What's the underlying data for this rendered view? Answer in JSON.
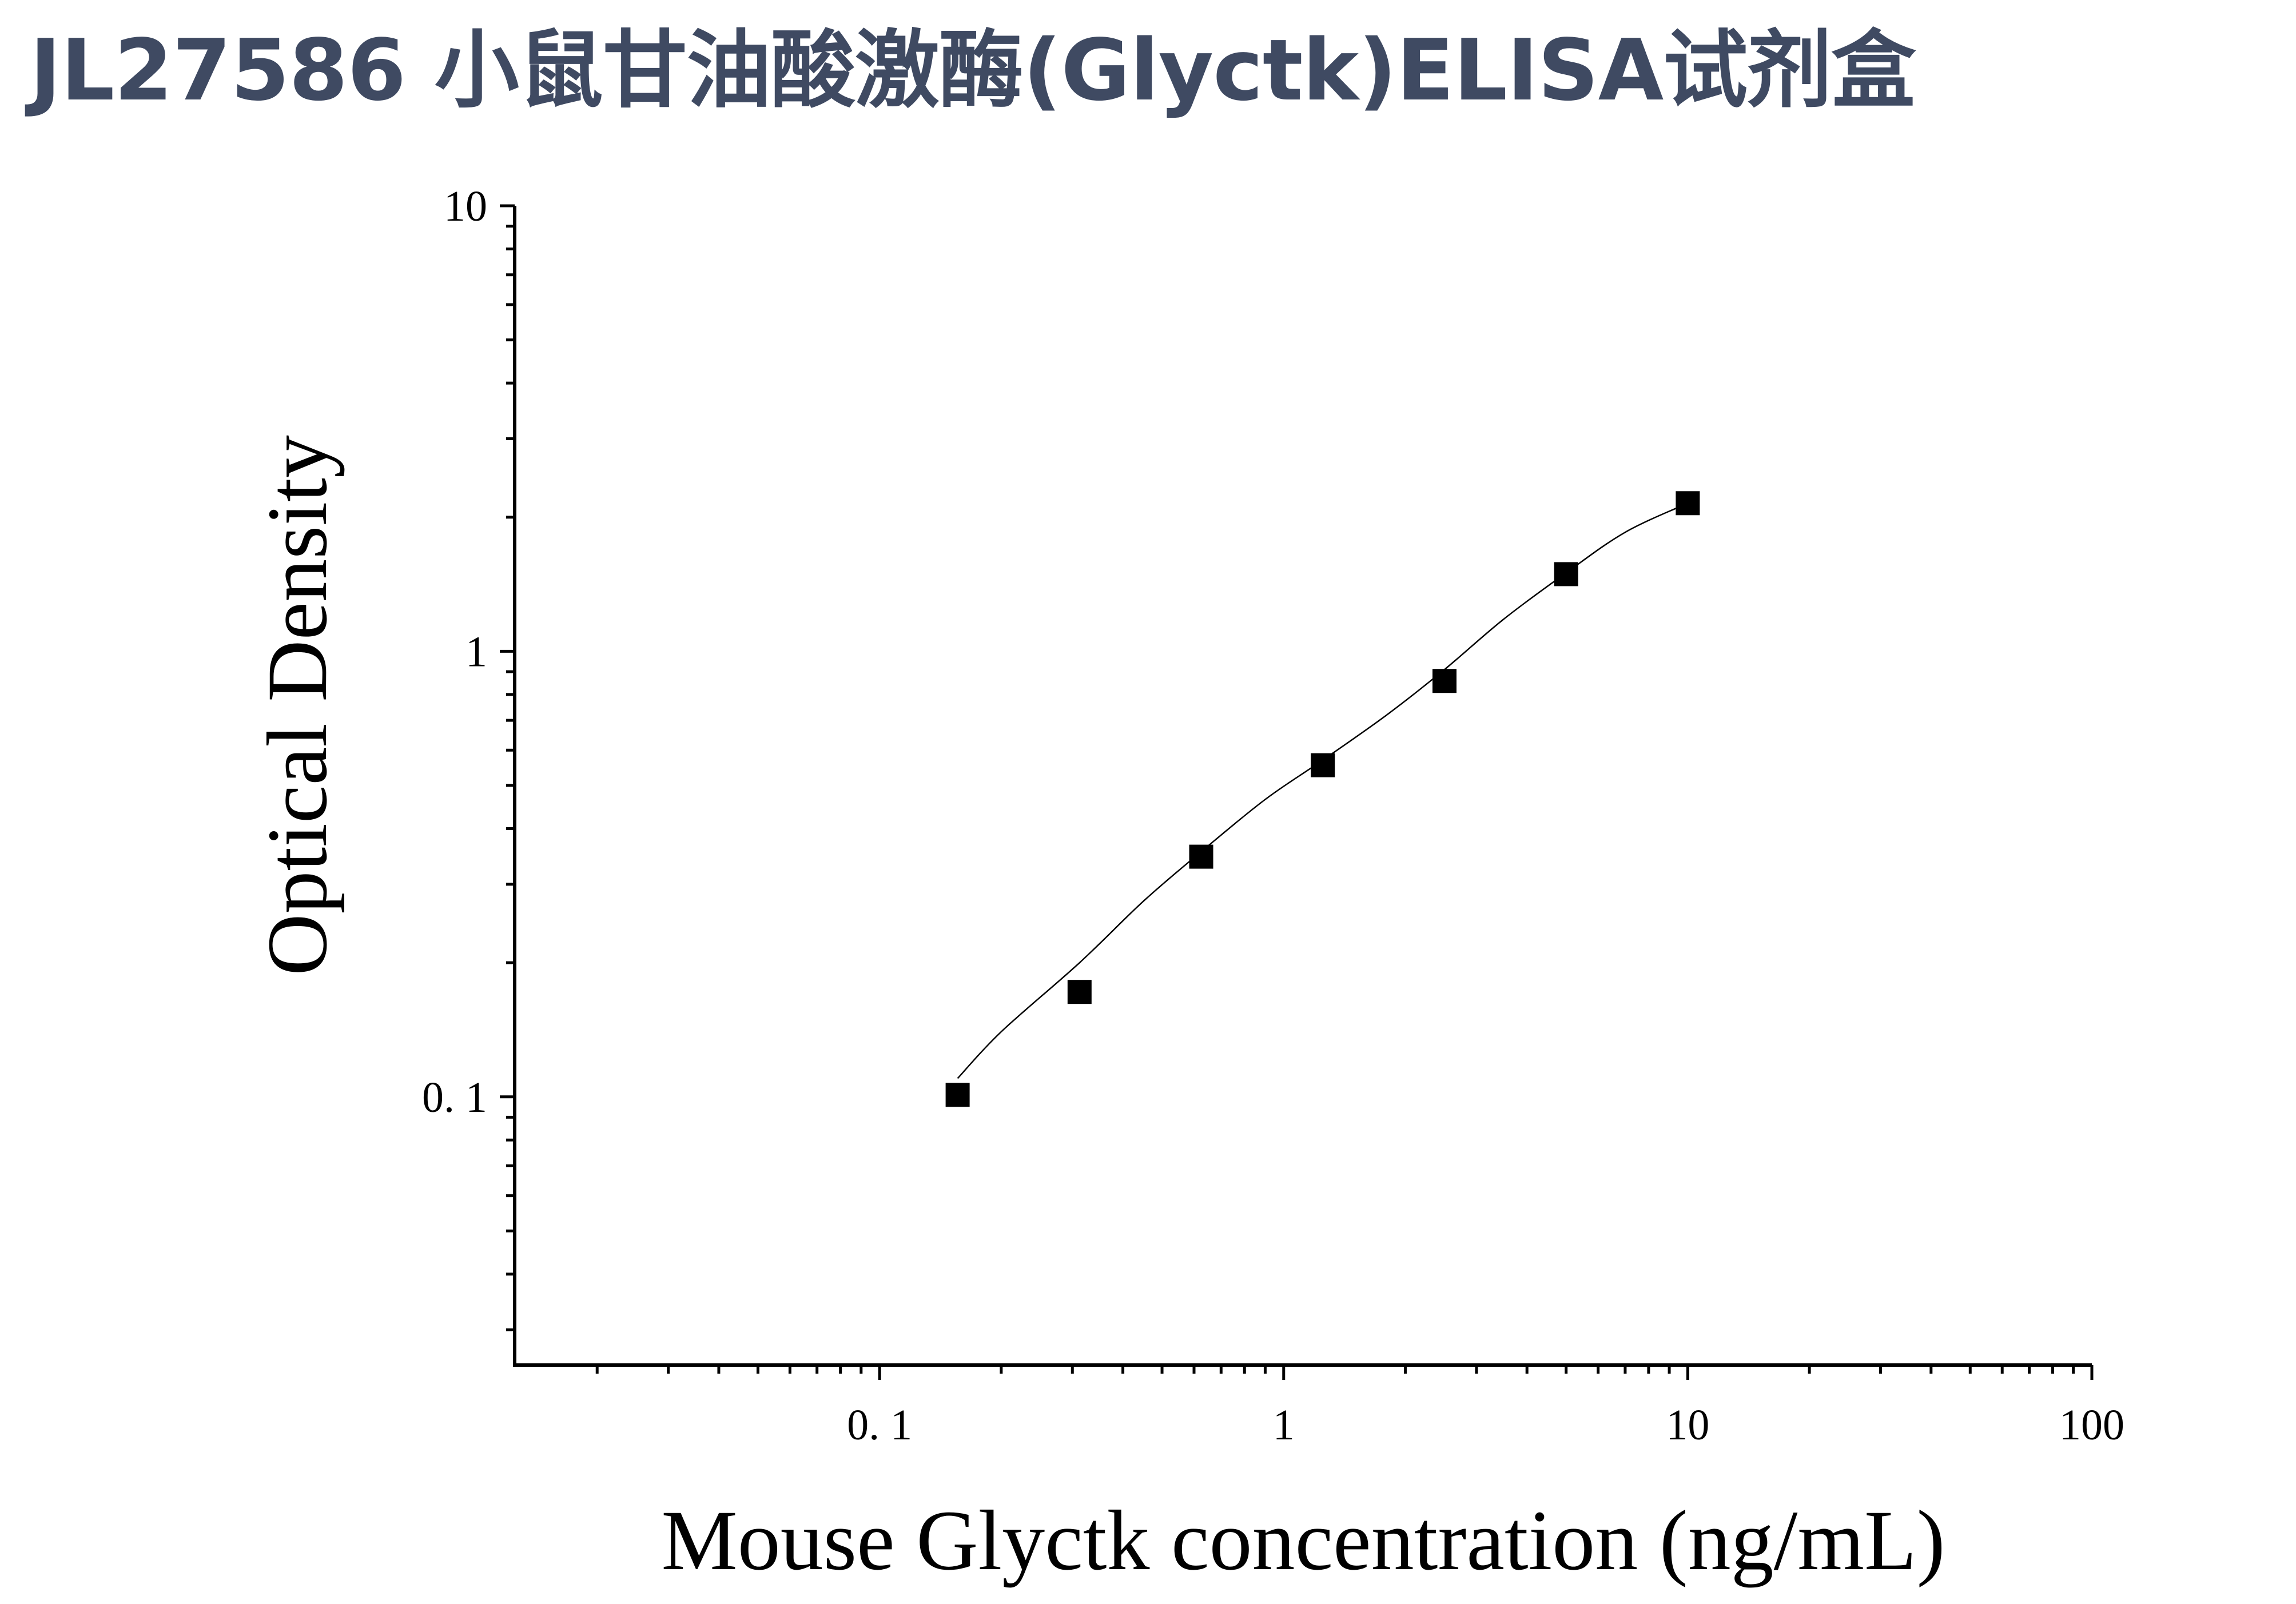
{
  "title": "JL27586 小鼠甘油酸激酶(Glyctk)ELISA试剂盒",
  "colors": {
    "title": "#3f4a62",
    "axis": "#000000",
    "points": "#000000"
  },
  "chart_data": {
    "type": "scatter",
    "title": "",
    "xlabel": "Mouse Glyctk concentration (ng/mL)",
    "ylabel": "Optical Density",
    "x_scale": "log",
    "y_scale": "log",
    "xlim": [
      0.0125,
      100
    ],
    "ylim": [
      0.025,
      10
    ],
    "grid": false,
    "legend": "none",
    "x_ticks": [
      {
        "value": 0.1,
        "label": "0. 1"
      },
      {
        "value": 1,
        "label": "1"
      },
      {
        "value": 10,
        "label": "10"
      },
      {
        "value": 100,
        "label": "100"
      }
    ],
    "y_ticks": [
      {
        "value": 0.1,
        "label": "0. 1"
      },
      {
        "value": 1,
        "label": "1"
      },
      {
        "value": 10,
        "label": "10"
      }
    ],
    "series": [
      {
        "marker": "square",
        "x": [
          0.156,
          0.3125,
          0.625,
          1.25,
          2.5,
          5,
          10
        ],
        "y": [
          0.101,
          0.172,
          0.346,
          0.555,
          0.858,
          1.49,
          2.15
        ]
      }
    ],
    "fit_curve": {
      "x": [
        0.156,
        0.2,
        0.3125,
        0.45,
        0.625,
        0.9,
        1.25,
        1.8,
        2.5,
        3.5,
        5,
        7,
        10
      ],
      "y": [
        0.11,
        0.14,
        0.2,
        0.275,
        0.355,
        0.465,
        0.57,
        0.72,
        0.91,
        1.18,
        1.5,
        1.85,
        2.15
      ]
    }
  }
}
